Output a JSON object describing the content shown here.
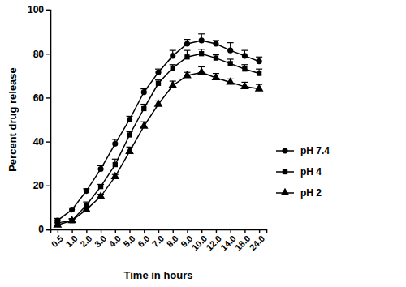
{
  "chart_data": {
    "type": "line",
    "xlabel": "Time in hours",
    "ylabel": "Percent drug release",
    "categories": [
      "0.5",
      "1.0",
      "2.0",
      "3.0",
      "4.0",
      "5.0",
      "6.0",
      "7.0",
      "8.0",
      "9.0",
      "10.0",
      "12.0",
      "14.0",
      "18.0",
      "24.0"
    ],
    "series": [
      {
        "name": "pH 7.4",
        "color": "#000000",
        "marker": "circle",
        "line_style": "solid",
        "values": [
          4,
          9,
          17.5,
          27.5,
          39,
          50,
          62.5,
          71.5,
          79,
          84.5,
          86,
          84.5,
          81.5,
          79,
          76.5
        ],
        "errors": [
          1,
          0.8,
          1,
          1.5,
          2,
          1.5,
          1.5,
          1.5,
          2.5,
          2,
          3,
          1.5,
          3.5,
          2.5,
          2
        ]
      },
      {
        "name": "pH 4",
        "color": "#000000",
        "marker": "square",
        "line_style": "solid",
        "values": [
          3,
          4,
          11,
          19.5,
          29.5,
          43,
          55,
          66.5,
          73.5,
          78.5,
          80,
          78,
          75.5,
          73,
          71
        ],
        "errors": [
          1,
          0.8,
          1.5,
          1,
          2.5,
          1.5,
          2,
          1.5,
          1.5,
          3,
          2,
          1.5,
          2,
          2,
          2
        ]
      },
      {
        "name": "pH 2",
        "color": "#000000",
        "marker": "triangle",
        "line_style": "solid",
        "values": [
          2,
          4,
          9,
          15,
          24,
          35.5,
          47,
          57,
          65.5,
          70,
          71.5,
          69,
          67,
          65,
          64
        ],
        "errors": [
          1,
          0.8,
          1,
          1,
          1,
          2,
          2,
          1.5,
          2,
          1.5,
          2.5,
          2,
          1.5,
          2,
          2
        ]
      }
    ],
    "ylim": [
      0,
      100
    ],
    "yticks": [
      0,
      20,
      40,
      60,
      80,
      100
    ],
    "legend": "right",
    "grid": false
  }
}
